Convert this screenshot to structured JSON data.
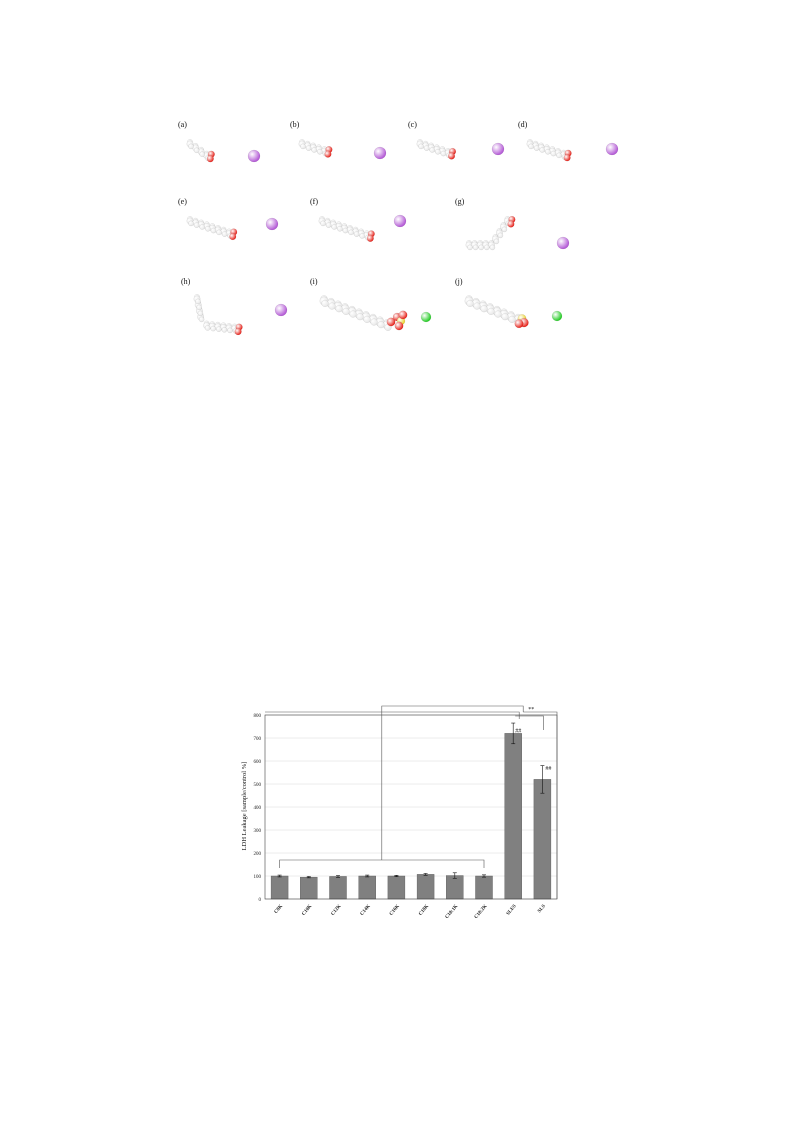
{
  "molecules": {
    "panels": [
      {
        "label": "(a)",
        "chain": 4,
        "style": "straight",
        "head": "carboxylate",
        "ion": "potassium"
      },
      {
        "label": "(b)",
        "chain": 5,
        "style": "straight",
        "head": "carboxylate",
        "ion": "potassium"
      },
      {
        "label": "(c)",
        "chain": 6,
        "style": "straight",
        "head": "carboxylate",
        "ion": "potassium"
      },
      {
        "label": "(d)",
        "chain": 7,
        "style": "straight",
        "head": "carboxylate",
        "ion": "potassium"
      },
      {
        "label": "(e)",
        "chain": 8,
        "style": "straight",
        "head": "carboxylate",
        "ion": "potassium"
      },
      {
        "label": "(f)",
        "chain": 9,
        "style": "straight",
        "head": "carboxylate",
        "ion": "potassium"
      },
      {
        "label": "(g)",
        "chain": 9,
        "style": "bent-up",
        "head": "carboxylate",
        "ion": "potassium"
      },
      {
        "label": "(h)",
        "chain": 9,
        "style": "bent-back",
        "head": "carboxylate",
        "ion": "potassium"
      },
      {
        "label": "(i)",
        "chain": 10,
        "style": "straight-thick",
        "head": "sulfonate-ester",
        "ion": "sodium"
      },
      {
        "label": "(j)",
        "chain": 8,
        "style": "straight-thick",
        "head": "sulfate",
        "ion": "sodium"
      }
    ],
    "colors": {
      "carbon": "#e8e8e8",
      "oxygen": "#e8231b",
      "sulfur": "#e9d22a",
      "potassium": "#b45ad6",
      "sodium": "#22cc22"
    }
  },
  "chart_data": {
    "type": "bar",
    "categories": [
      "C8K",
      "C10K",
      "C12K",
      "C14K",
      "C16K",
      "C18K",
      "C18:1K",
      "C18:2K",
      "SLES",
      "SLS"
    ],
    "values": [
      100,
      95,
      98,
      100,
      100,
      107,
      102,
      100,
      720,
      520
    ],
    "errors": [
      4,
      3,
      4,
      4,
      3,
      4,
      12,
      5,
      45,
      60
    ],
    "ylabel": "LDH Leakage  [sample/control %]",
    "ylim": [
      0,
      800
    ],
    "yticks": [
      0,
      100,
      200,
      300,
      400,
      500,
      600,
      700,
      800
    ],
    "grid": true,
    "bar_color": "#808080",
    "annotations": [
      {
        "target": "SLES",
        "text": "##"
      },
      {
        "target": "SLS",
        "text": "##"
      },
      {
        "target": "bracket",
        "text": "**"
      }
    ]
  }
}
